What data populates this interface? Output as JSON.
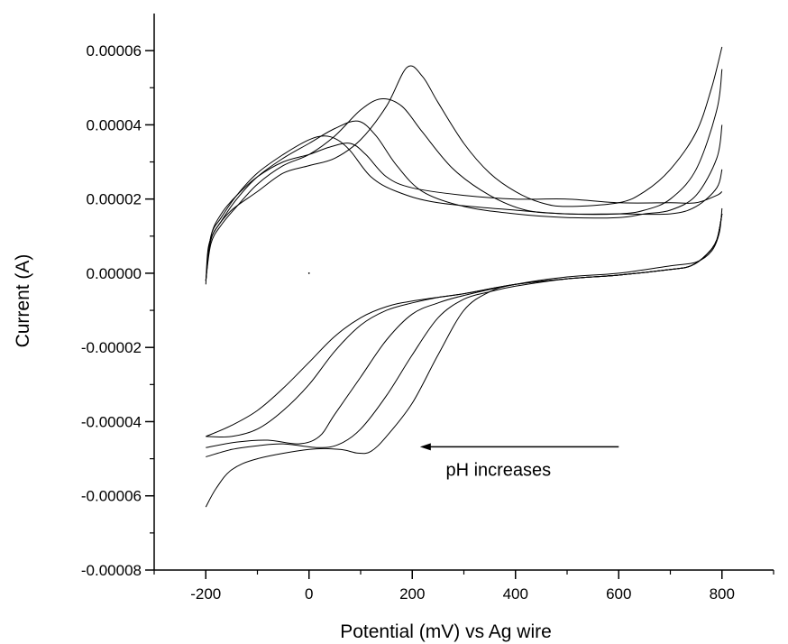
{
  "chart_data": {
    "type": "line",
    "title": "",
    "xlabel": "Potential (mV) vs Ag wire",
    "ylabel": "Current (A)",
    "xlim": [
      -300,
      900
    ],
    "ylim": [
      -8e-05,
      7e-05
    ],
    "x_ticks": [
      -200,
      0,
      200,
      400,
      600,
      800
    ],
    "x_tick_labels": [
      "-200",
      "0",
      "200",
      "400",
      "600",
      "800"
    ],
    "y_ticks": [
      6e-05,
      4e-05,
      2e-05,
      0.0,
      -2e-05,
      -4e-05,
      -6e-05,
      -8e-05
    ],
    "y_tick_labels": [
      "0.00006",
      "0.00004",
      "0.00002",
      "0.00000",
      "-0.00002",
      "-0.00004",
      "-0.00006",
      "-0.00008"
    ],
    "grid": false,
    "annotation": {
      "text": "pH increases",
      "arrow_from": [
        600,
        -4.68e-05
      ],
      "arrow_to": [
        215,
        -4.68e-05
      ]
    },
    "series": [
      {
        "forward": [
          [
            -200,
            -3e-06
          ],
          [
            -195,
            7e-06
          ],
          [
            -180,
            1.2e-05
          ],
          [
            -150,
            1.7e-05
          ],
          [
            -100,
            2.2e-05
          ],
          [
            -50,
            2.7e-05
          ],
          [
            0,
            2.9e-05
          ],
          [
            50,
            3.1e-05
          ],
          [
            100,
            3.6e-05
          ],
          [
            150,
            4.5e-05
          ],
          [
            190,
            5.55e-05
          ],
          [
            220,
            5.3e-05
          ],
          [
            250,
            4.6e-05
          ],
          [
            300,
            3.5e-05
          ],
          [
            350,
            2.7e-05
          ],
          [
            400,
            2.2e-05
          ],
          [
            450,
            1.9e-05
          ],
          [
            500,
            1.8e-05
          ],
          [
            600,
            1.9e-05
          ],
          [
            650,
            2.2e-05
          ],
          [
            700,
            2.8e-05
          ],
          [
            750,
            3.8e-05
          ],
          [
            780,
            5e-05
          ],
          [
            800,
            6.1e-05
          ]
        ],
        "reverse": [
          [
            800,
            1.75e-05
          ],
          [
            795,
            1.1e-05
          ],
          [
            780,
            6e-06
          ],
          [
            750,
            3e-06
          ],
          [
            700,
            2e-06
          ],
          [
            600,
            0.0
          ],
          [
            500,
            -1e-06
          ],
          [
            400,
            -3e-06
          ],
          [
            350,
            -5e-06
          ],
          [
            300,
            -1e-05
          ],
          [
            250,
            -2.2e-05
          ],
          [
            200,
            -3.5e-05
          ],
          [
            150,
            -4.4e-05
          ],
          [
            120,
            -4.8e-05
          ],
          [
            95,
            -4.85e-05
          ],
          [
            60,
            -4.75e-05
          ],
          [
            0,
            -4.75e-05
          ],
          [
            -100,
            -5e-05
          ],
          [
            -150,
            -5.3e-05
          ],
          [
            -180,
            -5.8e-05
          ],
          [
            -200,
            -6.3e-05
          ]
        ]
      },
      {
        "forward": [
          [
            -200,
            -2e-06
          ],
          [
            -190,
            8e-06
          ],
          [
            -170,
            1.3e-05
          ],
          [
            -140,
            1.8e-05
          ],
          [
            -100,
            2.4e-05
          ],
          [
            -50,
            2.9e-05
          ],
          [
            0,
            3.2e-05
          ],
          [
            50,
            3.7e-05
          ],
          [
            100,
            4.4e-05
          ],
          [
            140,
            4.7e-05
          ],
          [
            180,
            4.5e-05
          ],
          [
            220,
            3.8e-05
          ],
          [
            280,
            2.8e-05
          ],
          [
            350,
            2.1e-05
          ],
          [
            420,
            1.7e-05
          ],
          [
            500,
            1.6e-05
          ],
          [
            600,
            1.6e-05
          ],
          [
            650,
            1.7e-05
          ],
          [
            700,
            2e-05
          ],
          [
            750,
            2.8e-05
          ],
          [
            790,
            4.4e-05
          ],
          [
            800,
            5.5e-05
          ]
        ],
        "reverse": [
          [
            800,
            1.6e-05
          ],
          [
            790,
            9e-06
          ],
          [
            770,
            5e-06
          ],
          [
            740,
            2e-06
          ],
          [
            700,
            1e-06
          ],
          [
            600,
            -5e-07
          ],
          [
            500,
            -1.5e-06
          ],
          [
            400,
            -3.5e-06
          ],
          [
            350,
            -5e-06
          ],
          [
            300,
            -7e-06
          ],
          [
            250,
            -1.2e-05
          ],
          [
            200,
            -2.2e-05
          ],
          [
            150,
            -3.3e-05
          ],
          [
            100,
            -4.2e-05
          ],
          [
            60,
            -4.6e-05
          ],
          [
            20,
            -4.7e-05
          ],
          [
            -50,
            -4.6e-05
          ],
          [
            -100,
            -4.65e-05
          ],
          [
            -150,
            -4.75e-05
          ],
          [
            -200,
            -4.95e-05
          ]
        ]
      },
      {
        "forward": [
          [
            -200,
            -2e-06
          ],
          [
            -190,
            9e-06
          ],
          [
            -170,
            1.4e-05
          ],
          [
            -140,
            2e-05
          ],
          [
            -100,
            2.6e-05
          ],
          [
            -50,
            3.1e-05
          ],
          [
            0,
            3.5e-05
          ],
          [
            50,
            3.9e-05
          ],
          [
            95,
            4.1e-05
          ],
          [
            130,
            3.7e-05
          ],
          [
            170,
            2.9e-05
          ],
          [
            220,
            2.2e-05
          ],
          [
            300,
            1.8e-05
          ],
          [
            400,
            1.6e-05
          ],
          [
            500,
            1.5e-05
          ],
          [
            600,
            1.5e-05
          ],
          [
            650,
            1.6e-05
          ],
          [
            700,
            1.7e-05
          ],
          [
            750,
            2.1e-05
          ],
          [
            790,
            3.1e-05
          ],
          [
            800,
            4e-05
          ]
        ],
        "reverse": [
          [
            800,
            1.6e-05
          ],
          [
            790,
            9e-06
          ],
          [
            770,
            5e-06
          ],
          [
            740,
            2e-06
          ],
          [
            700,
            1e-06
          ],
          [
            600,
            -5e-07
          ],
          [
            500,
            -1.5e-06
          ],
          [
            400,
            -3e-06
          ],
          [
            300,
            -6e-06
          ],
          [
            250,
            -8e-06
          ],
          [
            200,
            -1.1e-05
          ],
          [
            150,
            -1.8e-05
          ],
          [
            100,
            -2.8e-05
          ],
          [
            50,
            -3.8e-05
          ],
          [
            20,
            -4.4e-05
          ],
          [
            -20,
            -4.6e-05
          ],
          [
            -80,
            -4.5e-05
          ],
          [
            -140,
            -4.55e-05
          ],
          [
            -200,
            -4.7e-05
          ]
        ]
      },
      {
        "forward": [
          [
            -200,
            -2e-06
          ],
          [
            -190,
            1e-05
          ],
          [
            -170,
            1.5e-05
          ],
          [
            -140,
            2.1e-05
          ],
          [
            -100,
            2.7e-05
          ],
          [
            -50,
            3.2e-05
          ],
          [
            0,
            3.6e-05
          ],
          [
            30,
            3.7e-05
          ],
          [
            55,
            3.6e-05
          ],
          [
            80,
            3.3e-05
          ],
          [
            120,
            2.6e-05
          ],
          [
            170,
            2.2e-05
          ],
          [
            250,
            1.9e-05
          ],
          [
            400,
            1.7e-05
          ],
          [
            500,
            1.6e-05
          ],
          [
            600,
            1.6e-05
          ],
          [
            700,
            1.6e-05
          ],
          [
            750,
            1.8e-05
          ],
          [
            790,
            2.3e-05
          ],
          [
            800,
            2.8e-05
          ]
        ],
        "reverse": [
          [
            800,
            1.6e-05
          ],
          [
            790,
            9e-06
          ],
          [
            770,
            5e-06
          ],
          [
            740,
            2e-06
          ],
          [
            700,
            1e-06
          ],
          [
            600,
            -5e-07
          ],
          [
            500,
            -1.5e-06
          ],
          [
            400,
            -3e-06
          ],
          [
            300,
            -5.5e-06
          ],
          [
            250,
            -6.5e-06
          ],
          [
            200,
            -8e-06
          ],
          [
            150,
            -1e-05
          ],
          [
            100,
            -1.4e-05
          ],
          [
            50,
            -2.1e-05
          ],
          [
            0,
            -3e-05
          ],
          [
            -50,
            -3.7e-05
          ],
          [
            -100,
            -4.2e-05
          ],
          [
            -150,
            -4.4e-05
          ],
          [
            -200,
            -4.4e-05
          ]
        ]
      },
      {
        "forward": [
          [
            -200,
            -2e-06
          ],
          [
            -190,
            1e-05
          ],
          [
            -170,
            1.6e-05
          ],
          [
            -140,
            2.1e-05
          ],
          [
            -100,
            2.6e-05
          ],
          [
            -50,
            3e-05
          ],
          [
            0,
            3.2e-05
          ],
          [
            40,
            3.4e-05
          ],
          [
            80,
            3.5e-05
          ],
          [
            110,
            3.2e-05
          ],
          [
            150,
            2.6e-05
          ],
          [
            200,
            2.3e-05
          ],
          [
            300,
            2.1e-05
          ],
          [
            400,
            2e-05
          ],
          [
            500,
            2e-05
          ],
          [
            600,
            1.9e-05
          ],
          [
            700,
            1.9e-05
          ],
          [
            750,
            1.9e-05
          ],
          [
            790,
            2.1e-05
          ],
          [
            800,
            2.2e-05
          ]
        ],
        "reverse": [
          [
            800,
            1.6e-05
          ],
          [
            790,
            9e-06
          ],
          [
            770,
            5e-06
          ],
          [
            740,
            2e-06
          ],
          [
            700,
            1e-06
          ],
          [
            600,
            -5e-07
          ],
          [
            500,
            -1.5e-06
          ],
          [
            400,
            -3e-06
          ],
          [
            300,
            -5.5e-06
          ],
          [
            200,
            -7.5e-06
          ],
          [
            150,
            -9e-06
          ],
          [
            100,
            -1.2e-05
          ],
          [
            50,
            -1.7e-05
          ],
          [
            0,
            -2.4e-05
          ],
          [
            -50,
            -3.1e-05
          ],
          [
            -100,
            -3.7e-05
          ],
          [
            -150,
            -4.1e-05
          ],
          [
            -200,
            -4.4e-05
          ]
        ]
      }
    ]
  }
}
